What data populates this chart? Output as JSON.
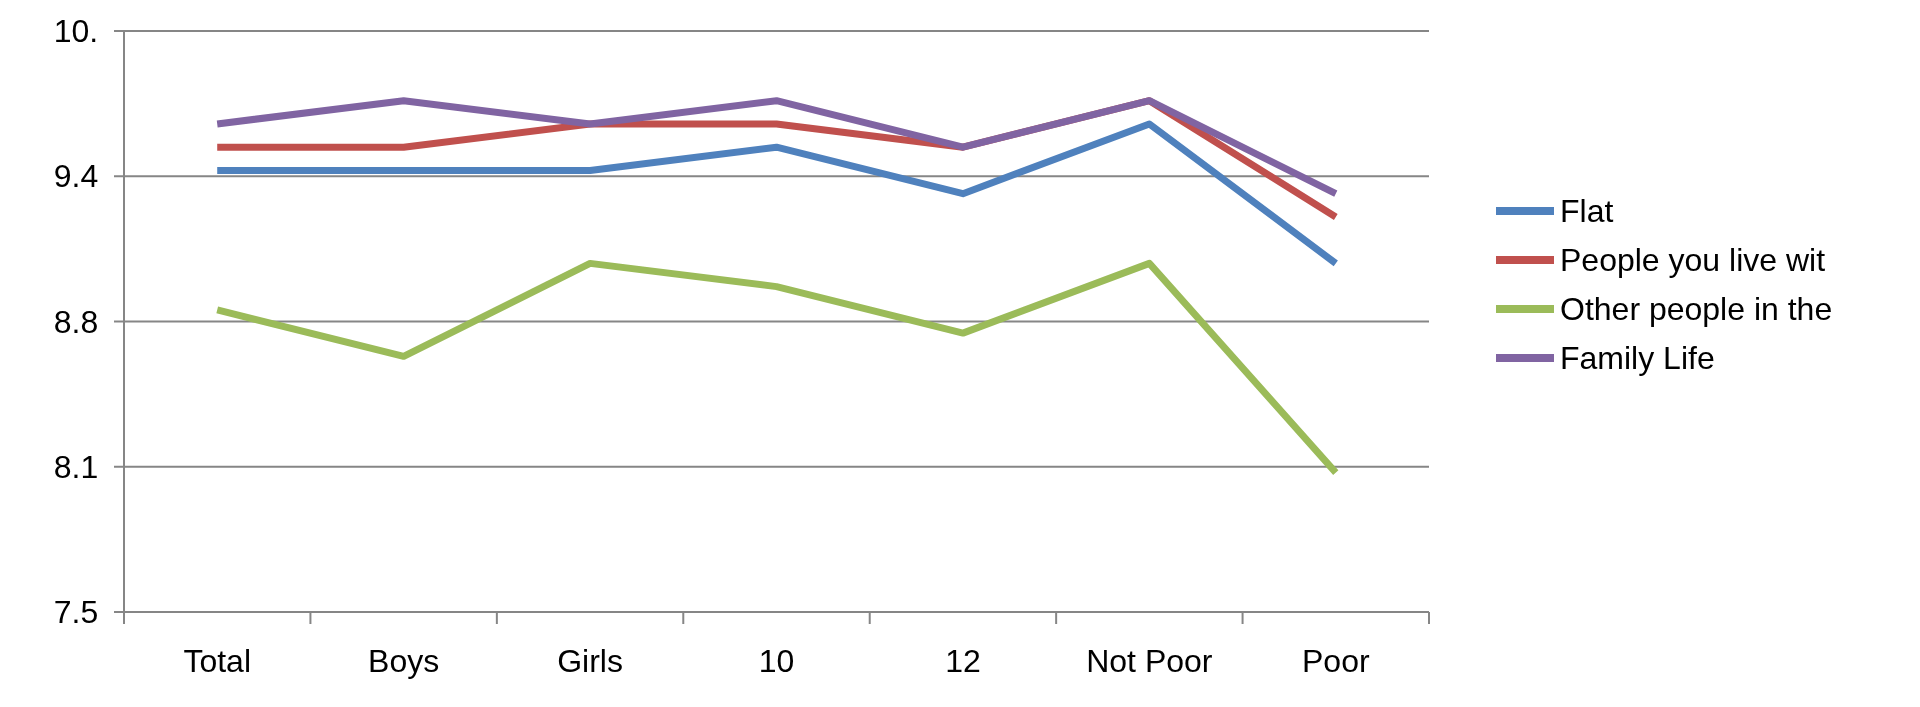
{
  "chart_data": {
    "type": "line",
    "categories": [
      "Total",
      "Boys",
      "Girls",
      "10",
      "12",
      "Not Poor",
      "Poor"
    ],
    "series": [
      {
        "name": "Flat",
        "color": "#4f81bd",
        "values": [
          9.4,
          9.4,
          9.4,
          9.5,
          9.3,
          9.6,
          9.0
        ]
      },
      {
        "name": "People you live wit",
        "color": "#c0504d",
        "values": [
          9.5,
          9.5,
          9.6,
          9.6,
          9.5,
          9.7,
          9.2
        ]
      },
      {
        "name": "Other people in the",
        "color": "#9bbb59",
        "values": [
          8.8,
          8.6,
          9.0,
          8.9,
          8.7,
          9.0,
          8.1
        ]
      },
      {
        "name": "Family Life",
        "color": "#8064a2",
        "values": [
          9.6,
          9.7,
          9.6,
          9.7,
          9.5,
          9.7,
          9.3
        ]
      }
    ],
    "ylim": [
      7.5,
      10
    ],
    "yticks": [
      7.5,
      {
        "value": 8.125,
        "label": "8.1"
      },
      {
        "value": 8.75,
        "label": "8.8"
      },
      {
        "value": 9.375,
        "label": "9.4"
      },
      {
        "value": 10,
        "label": "10."
      }
    ],
    "grid": "y",
    "legend": "right",
    "marker": "none",
    "line_style": "solid"
  }
}
